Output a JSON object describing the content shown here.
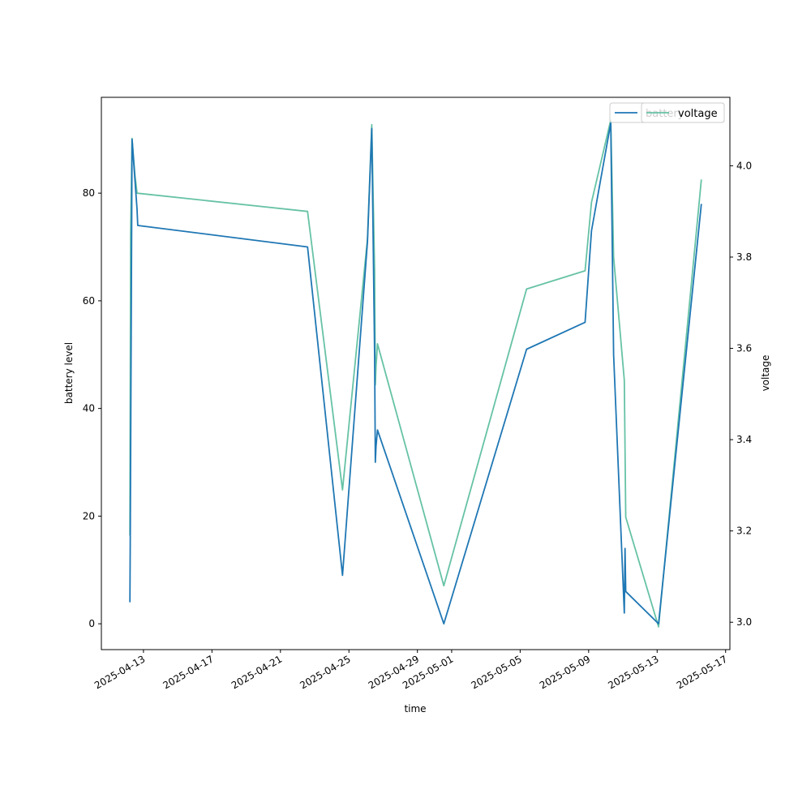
{
  "chart_data": {
    "type": "line",
    "xlabel": "time",
    "ylabel_left": "battery level",
    "ylabel_right": "voltage",
    "x_ticks": [
      "2025-04-13",
      "2025-04-17",
      "2025-04-21",
      "2025-04-25",
      "2025-04-29",
      "2025-05-01",
      "2025-05-05",
      "2025-05-09",
      "2025-05-13",
      "2025-05-17"
    ],
    "xlim": [
      "2025-04-10T13:00",
      "2025-05-17T06:00"
    ],
    "ylim_left": [
      -4.8,
      97.8
    ],
    "ylim_right": [
      2.94,
      4.15
    ],
    "y_ticks_left": [
      0,
      20,
      40,
      60,
      80
    ],
    "y_ticks_right": [
      3.0,
      3.2,
      3.4,
      3.6,
      3.8,
      4.0
    ],
    "legend": {
      "placement": "top-right",
      "entries_left": [
        "battery"
      ],
      "entries_right": [
        "voltage"
      ]
    },
    "series": [
      {
        "name": "battery",
        "axis": "left",
        "color": "#1f77b4",
        "points": [
          [
            "2025-04-12T05:00",
            4
          ],
          [
            "2025-04-12T05:30",
            16
          ],
          [
            "2025-04-12T08:00",
            90
          ],
          [
            "2025-04-12T15:00",
            77
          ],
          [
            "2025-04-12T16:00",
            74
          ],
          [
            "2025-04-22T14:00",
            70
          ],
          [
            "2025-04-24T15:00",
            9
          ],
          [
            "2025-04-26T02:00",
            71
          ],
          [
            "2025-04-26T08:00",
            92
          ],
          [
            "2025-04-26T12:00",
            50
          ],
          [
            "2025-04-26T13:00",
            30
          ],
          [
            "2025-04-26T14:00",
            33
          ],
          [
            "2025-04-26T16:00",
            36
          ],
          [
            "2025-04-30T13:00",
            0
          ],
          [
            "2025-05-05T09:00",
            51
          ],
          [
            "2025-05-08T19:00",
            56
          ],
          [
            "2025-05-09T04:00",
            73
          ],
          [
            "2025-05-10T07:00",
            93
          ],
          [
            "2025-05-10T11:00",
            50
          ],
          [
            "2025-05-11T02:00",
            2
          ],
          [
            "2025-05-11T03:00",
            14
          ],
          [
            "2025-05-11T04:00",
            6
          ],
          [
            "2025-05-13T02:00",
            0
          ],
          [
            "2025-05-15T14:00",
            78
          ]
        ]
      },
      {
        "name": "voltage",
        "axis": "right",
        "color": "#66c2a5",
        "points": [
          [
            "2025-04-12T05:00",
            3.19
          ],
          [
            "2025-04-12T06:00",
            3.85
          ],
          [
            "2025-04-12T08:00",
            4.06
          ],
          [
            "2025-04-12T12:00",
            3.98
          ],
          [
            "2025-04-12T15:00",
            3.94
          ],
          [
            "2025-04-22T14:00",
            3.9
          ],
          [
            "2025-04-24T15:00",
            3.29
          ],
          [
            "2025-04-26T02:00",
            3.84
          ],
          [
            "2025-04-26T08:00",
            4.09
          ],
          [
            "2025-04-26T12:00",
            3.77
          ],
          [
            "2025-04-26T13:00",
            3.52
          ],
          [
            "2025-04-26T14:00",
            3.56
          ],
          [
            "2025-04-26T16:00",
            3.61
          ],
          [
            "2025-04-30T13:00",
            3.08
          ],
          [
            "2025-05-05T09:00",
            3.73
          ],
          [
            "2025-05-08T19:00",
            3.77
          ],
          [
            "2025-05-09T04:00",
            3.92
          ],
          [
            "2025-05-10T07:00",
            4.1
          ],
          [
            "2025-05-10T11:00",
            3.8
          ],
          [
            "2025-05-11T02:00",
            3.53
          ],
          [
            "2025-05-11T03:00",
            3.38
          ],
          [
            "2025-05-11T04:00",
            3.23
          ],
          [
            "2025-05-13T02:00",
            2.99
          ],
          [
            "2025-05-15T14:00",
            3.97
          ]
        ]
      }
    ]
  }
}
